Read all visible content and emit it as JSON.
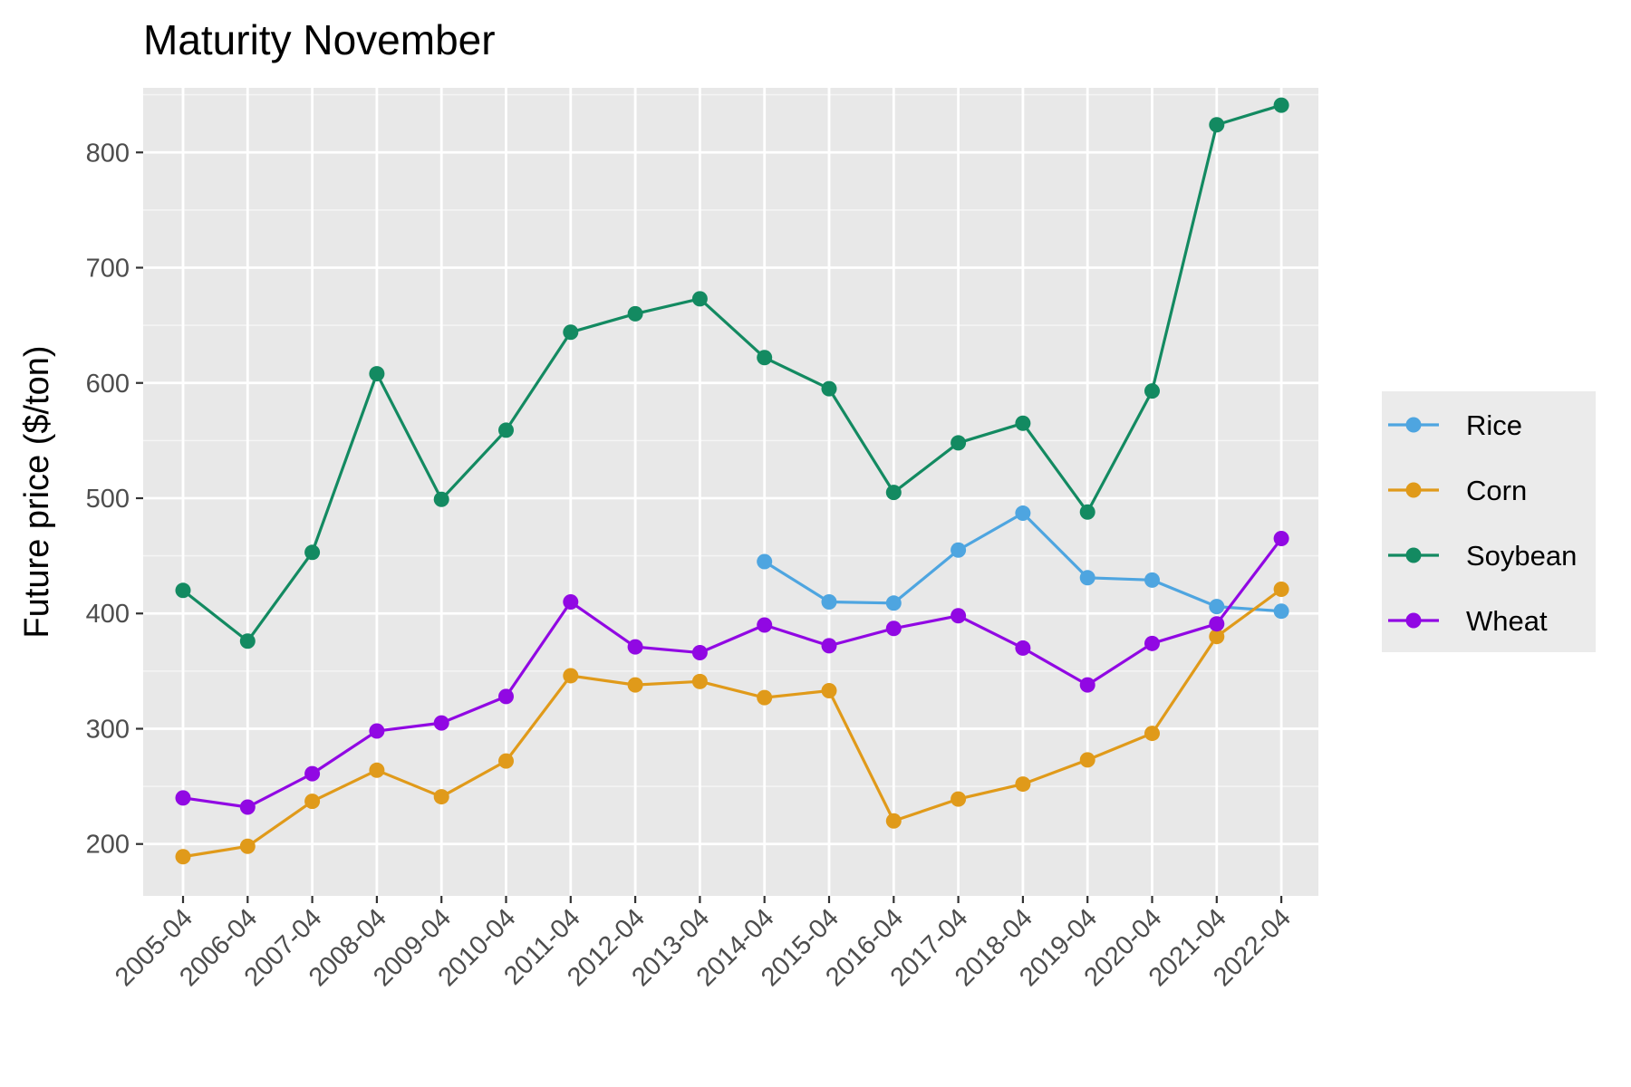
{
  "chart_data": {
    "type": "line",
    "title": "Maturity November",
    "xlabel": "",
    "ylabel": "Future price ($/ton)",
    "categories": [
      "2005-04",
      "2006-04",
      "2007-04",
      "2008-04",
      "2009-04",
      "2010-04",
      "2011-04",
      "2012-04",
      "2013-04",
      "2014-04",
      "2015-04",
      "2016-04",
      "2017-04",
      "2018-04",
      "2019-04",
      "2020-04",
      "2021-04",
      "2022-04"
    ],
    "ylim": [
      155,
      856
    ],
    "yticks": [
      200,
      300,
      400,
      500,
      600,
      700,
      800
    ],
    "grid": true,
    "legend_position": "right",
    "series": [
      {
        "name": "Rice",
        "color": "#4ea5e0",
        "values": [
          null,
          null,
          null,
          null,
          null,
          null,
          null,
          null,
          null,
          445,
          410,
          409,
          455,
          487,
          431,
          429,
          406,
          402
        ]
      },
      {
        "name": "Corn",
        "color": "#e09a1a",
        "values": [
          189,
          198,
          237,
          264,
          241,
          272,
          346,
          338,
          341,
          327,
          333,
          220,
          239,
          252,
          273,
          296,
          380,
          421
        ]
      },
      {
        "name": "Soybean",
        "color": "#138a61",
        "values": [
          420,
          376,
          453,
          608,
          499,
          559,
          644,
          660,
          673,
          622,
          595,
          505,
          548,
          565,
          488,
          593,
          824,
          841
        ]
      },
      {
        "name": "Wheat",
        "color": "#9108e3",
        "values": [
          240,
          232,
          261,
          298,
          305,
          328,
          410,
          371,
          366,
          390,
          372,
          387,
          398,
          370,
          338,
          374,
          391,
          465
        ]
      }
    ]
  }
}
